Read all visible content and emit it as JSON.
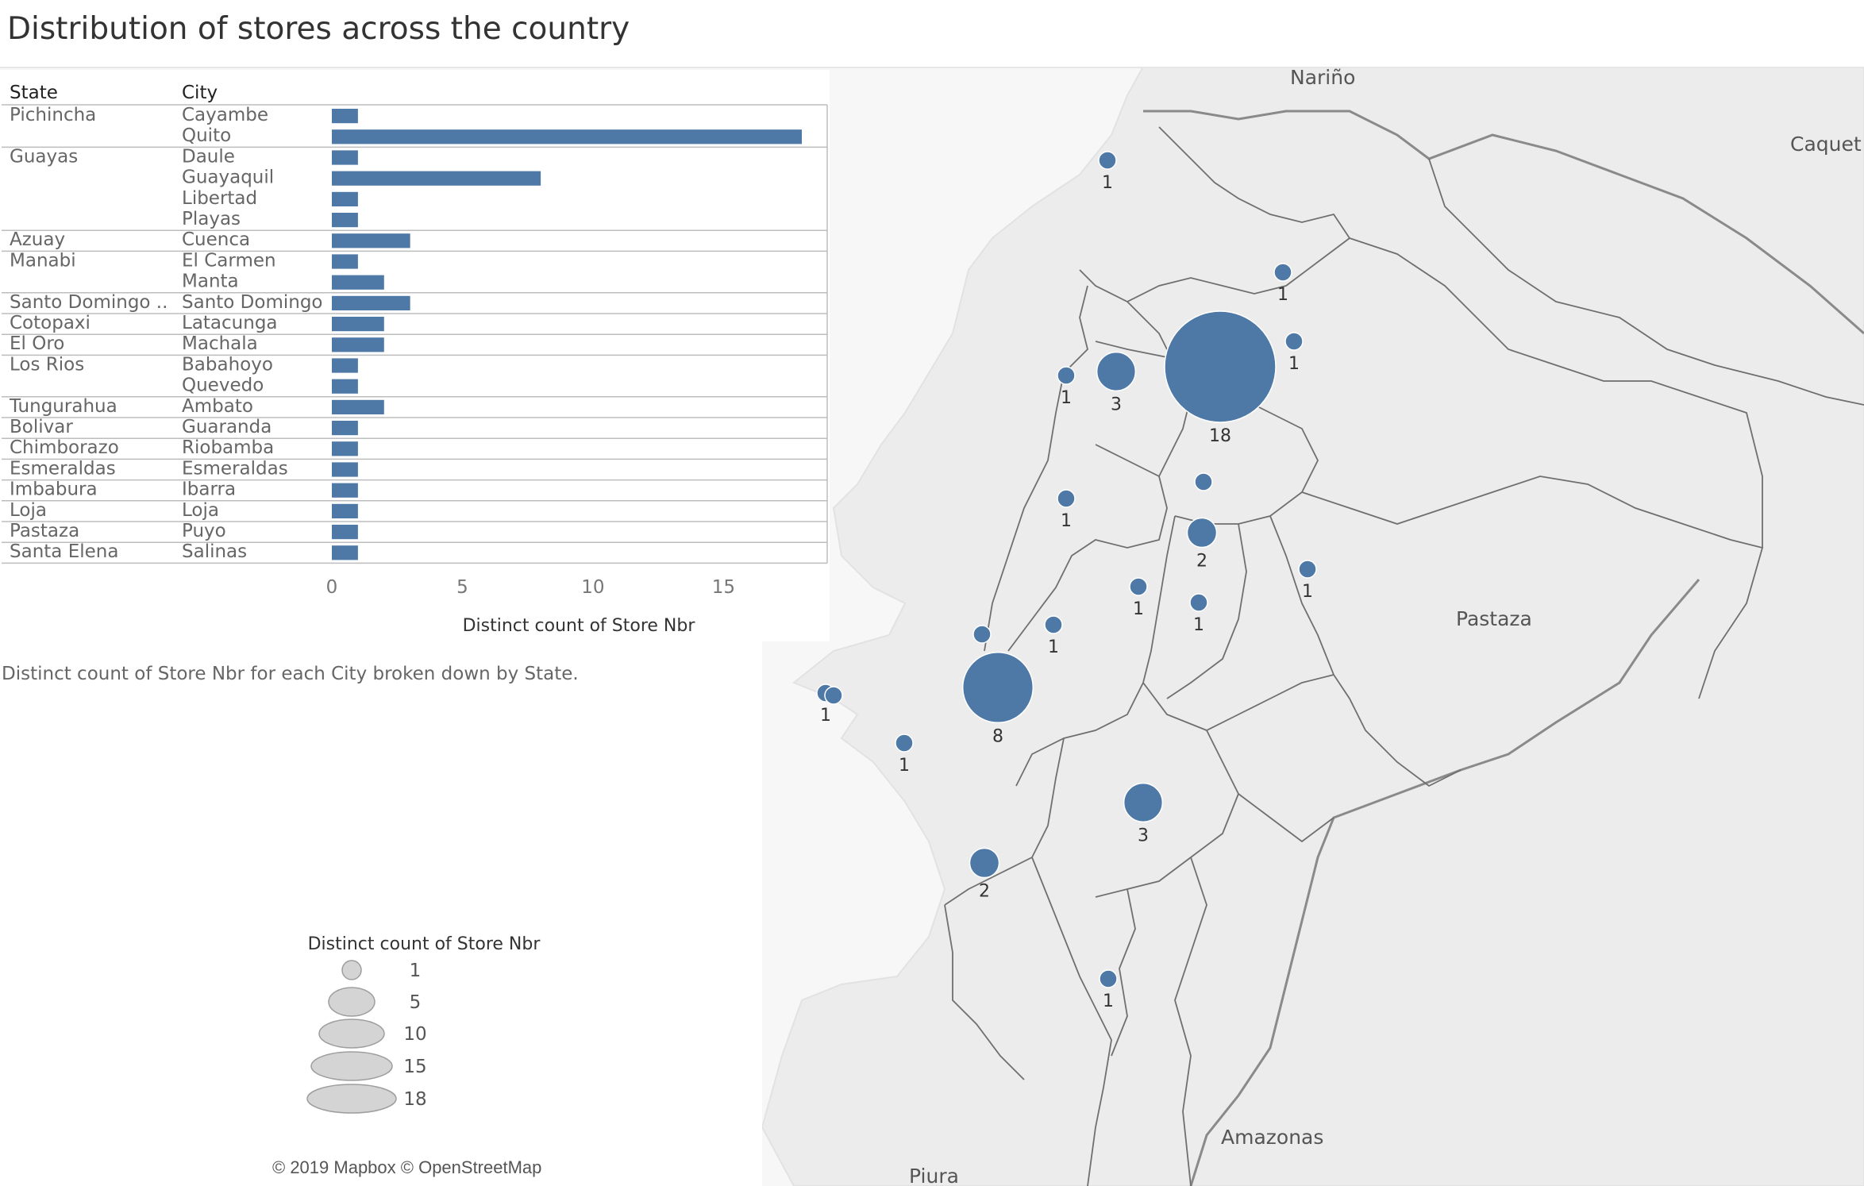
{
  "title": "Distribution of stores across the country",
  "caption": "Distinct count of Store Nbr for each City broken down by State.",
  "attribution": "© 2019 Mapbox © OpenStreetMap",
  "colors": {
    "mark": "#4e79a7",
    "map_land": "#ececec",
    "map_sea": "#f7f7f7",
    "border": "#7a7a7a",
    "legend_circle": "#d4d4d4"
  },
  "map": {
    "region_labels": [
      "Nariño",
      "Caquet",
      "Pastaza",
      "Amazonas",
      "Piura"
    ],
    "points": [
      {
        "value": 1,
        "label": "1"
      },
      {
        "value": 1,
        "label": "1"
      },
      {
        "value": 1,
        "label": "1"
      },
      {
        "value": 1,
        "label": "1"
      },
      {
        "value": 3,
        "label": "3"
      },
      {
        "value": 18,
        "label": "18"
      },
      {
        "value": 1,
        "label": ""
      },
      {
        "value": 1,
        "label": "1"
      },
      {
        "value": 2,
        "label": "2"
      },
      {
        "value": 1,
        "label": "1"
      },
      {
        "value": 1,
        "label": "1"
      },
      {
        "value": 1,
        "label": "1"
      },
      {
        "value": 1,
        "label": ""
      },
      {
        "value": 1,
        "label": "1"
      },
      {
        "value": 8,
        "label": "8"
      },
      {
        "value": 1,
        "label": "1"
      },
      {
        "value": 1,
        "label": "1"
      },
      {
        "value": 3,
        "label": "3"
      },
      {
        "value": 2,
        "label": "2"
      },
      {
        "value": 1,
        "label": "1"
      }
    ]
  },
  "legend": {
    "title": "Distinct count of Store Nbr",
    "items": [
      {
        "value": 1,
        "label": "1"
      },
      {
        "value": 5,
        "label": "5"
      },
      {
        "value": 10,
        "label": "10"
      },
      {
        "value": 15,
        "label": "15"
      },
      {
        "value": 18,
        "label": "18"
      }
    ]
  },
  "chart_data": {
    "type": "bar",
    "orientation": "horizontal",
    "headers": {
      "state": "State",
      "city": "City"
    },
    "xlabel": "Distinct count of Store Nbr",
    "xlim": [
      0,
      18
    ],
    "xticks": [
      "0",
      "5",
      "10",
      "15"
    ],
    "groups": [
      {
        "state": "Pichincha",
        "rows": [
          {
            "city": "Cayambe",
            "value": 1
          },
          {
            "city": "Quito",
            "value": 18
          }
        ]
      },
      {
        "state": "Guayas",
        "rows": [
          {
            "city": "Daule",
            "value": 1
          },
          {
            "city": "Guayaquil",
            "value": 8
          },
          {
            "city": "Libertad",
            "value": 1
          },
          {
            "city": "Playas",
            "value": 1
          }
        ]
      },
      {
        "state": "Azuay",
        "rows": [
          {
            "city": "Cuenca",
            "value": 3
          }
        ]
      },
      {
        "state": "Manabi",
        "rows": [
          {
            "city": "El Carmen",
            "value": 1
          },
          {
            "city": "Manta",
            "value": 2
          }
        ]
      },
      {
        "state": "Santo Domingo ..",
        "rows": [
          {
            "city": "Santo Domingo",
            "value": 3
          }
        ]
      },
      {
        "state": "Cotopaxi",
        "rows": [
          {
            "city": "Latacunga",
            "value": 2
          }
        ]
      },
      {
        "state": "El Oro",
        "rows": [
          {
            "city": "Machala",
            "value": 2
          }
        ]
      },
      {
        "state": "Los Rios",
        "rows": [
          {
            "city": "Babahoyo",
            "value": 1
          },
          {
            "city": "Quevedo",
            "value": 1
          }
        ]
      },
      {
        "state": "Tungurahua",
        "rows": [
          {
            "city": "Ambato",
            "value": 2
          }
        ]
      },
      {
        "state": "Bolivar",
        "rows": [
          {
            "city": "Guaranda",
            "value": 1
          }
        ]
      },
      {
        "state": "Chimborazo",
        "rows": [
          {
            "city": "Riobamba",
            "value": 1
          }
        ]
      },
      {
        "state": "Esmeraldas",
        "rows": [
          {
            "city": "Esmeraldas",
            "value": 1
          }
        ]
      },
      {
        "state": "Imbabura",
        "rows": [
          {
            "city": "Ibarra",
            "value": 1
          }
        ]
      },
      {
        "state": "Loja",
        "rows": [
          {
            "city": "Loja",
            "value": 1
          }
        ]
      },
      {
        "state": "Pastaza",
        "rows": [
          {
            "city": "Puyo",
            "value": 1
          }
        ]
      },
      {
        "state": "Santa Elena",
        "rows": [
          {
            "city": "Salinas",
            "value": 1
          }
        ]
      }
    ]
  }
}
